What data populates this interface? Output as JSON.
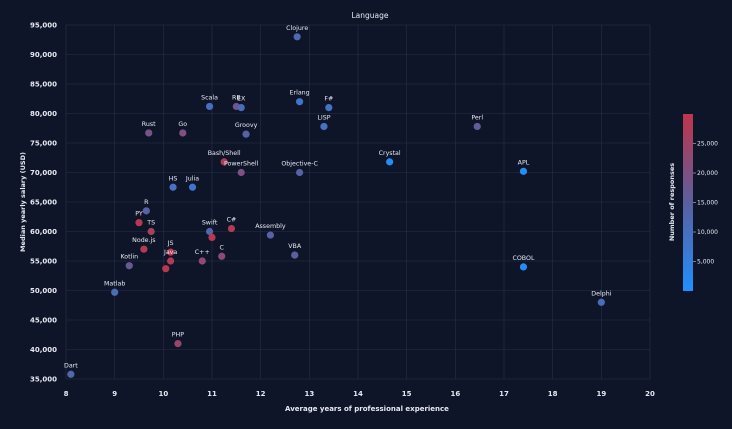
{
  "chart_data": {
    "type": "scatter",
    "title": "Language",
    "xlabel": "Average years of professional experience",
    "ylabel": "Median yearly salary (USD)",
    "xlim": [
      8,
      20
    ],
    "ylim": [
      35000,
      95000
    ],
    "x_ticks": [
      8,
      9,
      10,
      11,
      12,
      13,
      14,
      15,
      16,
      17,
      18,
      19,
      20
    ],
    "y_ticks": [
      35000,
      40000,
      45000,
      50000,
      55000,
      60000,
      65000,
      70000,
      75000,
      80000,
      85000,
      90000,
      95000
    ],
    "grid": true,
    "colorbar": {
      "label": "Number of responses",
      "range": [
        0,
        30000
      ],
      "ticks": [
        5000,
        10000,
        15000,
        20000,
        25000
      ],
      "low_color": "#1e90ff",
      "mid_color": "#5b5f9e",
      "high_color": "#c0344a"
    },
    "points": [
      {
        "label": "Clojure",
        "x": 12.75,
        "y": 93000,
        "count": 12000
      },
      {
        "label": "Erlang",
        "x": 12.8,
        "y": 82000,
        "count": 8000
      },
      {
        "label": "F#",
        "x": 13.4,
        "y": 81000,
        "count": 9000
      },
      {
        "label": "Scala",
        "x": 10.95,
        "y": 81200,
        "count": 10000
      },
      {
        "label": "RB",
        "x": 11.5,
        "y": 81200,
        "count": 18000
      },
      {
        "label": "EX",
        "x": 11.6,
        "y": 81000,
        "count": 11000
      },
      {
        "label": "Perl",
        "x": 16.45,
        "y": 77800,
        "count": 16000
      },
      {
        "label": "LISP",
        "x": 13.3,
        "y": 77800,
        "count": 9000
      },
      {
        "label": "Rust",
        "x": 9.7,
        "y": 76700,
        "count": 19000
      },
      {
        "label": "Go",
        "x": 10.4,
        "y": 76700,
        "count": 20000
      },
      {
        "label": "Groovy",
        "x": 11.7,
        "y": 76500,
        "count": 14000
      },
      {
        "label": "Crystal",
        "x": 14.65,
        "y": 71800,
        "count": 1000
      },
      {
        "label": "Bash/Shell",
        "x": 11.25,
        "y": 71800,
        "count": 27000
      },
      {
        "label": "PowerShell",
        "x": 11.6,
        "y": 70000,
        "count": 20000
      },
      {
        "label": "Objective-C",
        "x": 12.8,
        "y": 70000,
        "count": 14000
      },
      {
        "label": "APL",
        "x": 17.4,
        "y": 70200,
        "count": 700
      },
      {
        "label": "HS",
        "x": 10.2,
        "y": 67500,
        "count": 9000
      },
      {
        "label": "Julia",
        "x": 10.6,
        "y": 67500,
        "count": 8000
      },
      {
        "label": "R",
        "x": 9.65,
        "y": 63500,
        "count": 14000
      },
      {
        "label": "PY",
        "x": 9.5,
        "y": 61500,
        "count": 29000
      },
      {
        "label": "TS",
        "x": 9.75,
        "y": 60000,
        "count": 27000
      },
      {
        "label": "Swift",
        "x": 10.95,
        "y": 60000,
        "count": 13000
      },
      {
        "label": "C#",
        "x": 11.4,
        "y": 60500,
        "count": 28000
      },
      {
        "label": "Assembly",
        "x": 12.2,
        "y": 59400,
        "count": 14000
      },
      {
        "label": "Node.js",
        "x": 9.6,
        "y": 57000,
        "count": 28000
      },
      {
        "label": "JS",
        "x": 10.15,
        "y": 56500,
        "count": 29000
      },
      {
        "label": "VBA",
        "x": 12.7,
        "y": 56000,
        "count": 15000
      },
      {
        "label": "C",
        "x": 11.2,
        "y": 55800,
        "count": 22000
      },
      {
        "label": "Kotlin",
        "x": 9.3,
        "y": 54200,
        "count": 17000
      },
      {
        "label": "Java",
        "x": 10.15,
        "y": 55000,
        "count": 28000
      },
      {
        "label": "C++",
        "x": 10.8,
        "y": 55000,
        "count": 23000
      },
      {
        "label": "",
        "x": 11.0,
        "y": 59000,
        "count": 29000
      },
      {
        "label": "",
        "x": 10.05,
        "y": 53700,
        "count": 29000
      },
      {
        "label": "COBOL",
        "x": 17.4,
        "y": 54000,
        "count": 800
      },
      {
        "label": "Matlab",
        "x": 9.0,
        "y": 49700,
        "count": 11000
      },
      {
        "label": "Delphi",
        "x": 19.0,
        "y": 48000,
        "count": 11000
      },
      {
        "label": "PHP",
        "x": 10.3,
        "y": 41000,
        "count": 24000
      },
      {
        "label": "Dart",
        "x": 8.1,
        "y": 35800,
        "count": 13000
      }
    ]
  }
}
